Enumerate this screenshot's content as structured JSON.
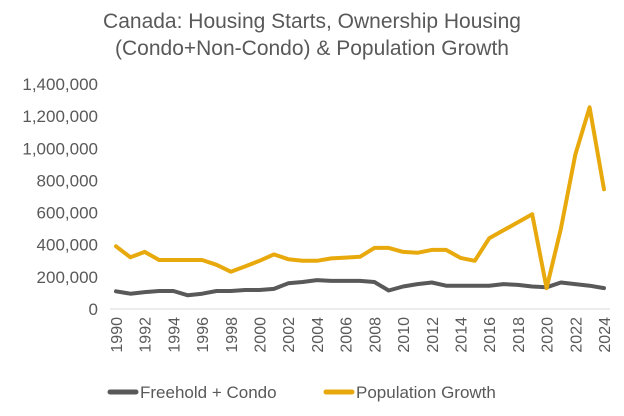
{
  "chart_data": {
    "type": "line",
    "title": "Canada: Housing Starts, Ownership Housing (Condo+Non-Condo) & Population Growth",
    "title_lines": [
      "Canada: Housing Starts, Ownership Housing",
      "(Condo+Non-Condo) & Population Growth"
    ],
    "xlabel": "",
    "ylabel": "",
    "ylim": [
      0,
      1400000
    ],
    "y_ticks": [
      0,
      200000,
      400000,
      600000,
      800000,
      1000000,
      1200000,
      1400000
    ],
    "y_tick_labels": [
      "0",
      "200,000",
      "400,000",
      "600,000",
      "800,000",
      "1,000,000",
      "1,200,000",
      "1,400,000"
    ],
    "x": [
      1990,
      1991,
      1992,
      1993,
      1994,
      1995,
      1996,
      1997,
      1998,
      1999,
      2000,
      2001,
      2002,
      2003,
      2004,
      2005,
      2006,
      2007,
      2008,
      2009,
      2010,
      2011,
      2012,
      2013,
      2014,
      2015,
      2016,
      2017,
      2018,
      2019,
      2020,
      2021,
      2022,
      2023,
      2024
    ],
    "x_tick_labels": [
      "1990",
      "1992",
      "1994",
      "1996",
      "1998",
      "2000",
      "2002",
      "2004",
      "2006",
      "2008",
      "2010",
      "2012",
      "2014",
      "2016",
      "2018",
      "2020",
      "2022",
      "2024"
    ],
    "grid": false,
    "legend_position": "bottom",
    "series": [
      {
        "name": "Freehold + Condo",
        "color": "#595959",
        "values": [
          110000,
          95000,
          105000,
          112000,
          112000,
          85000,
          95000,
          112000,
          112000,
          118000,
          118000,
          125000,
          160000,
          168000,
          180000,
          175000,
          175000,
          175000,
          168000,
          115000,
          140000,
          155000,
          165000,
          145000,
          145000,
          145000,
          145000,
          155000,
          150000,
          140000,
          135000,
          165000,
          155000,
          145000,
          130000
        ]
      },
      {
        "name": "Population Growth",
        "color": "#E8A90D",
        "values": [
          390000,
          322000,
          355000,
          305000,
          305000,
          305000,
          305000,
          275000,
          232000,
          265000,
          300000,
          340000,
          310000,
          300000,
          300000,
          315000,
          320000,
          325000,
          380000,
          380000,
          355000,
          350000,
          368000,
          368000,
          318000,
          300000,
          440000,
          490000,
          540000,
          590000,
          130000,
          500000,
          960000,
          1255000,
          745000
        ]
      }
    ]
  }
}
